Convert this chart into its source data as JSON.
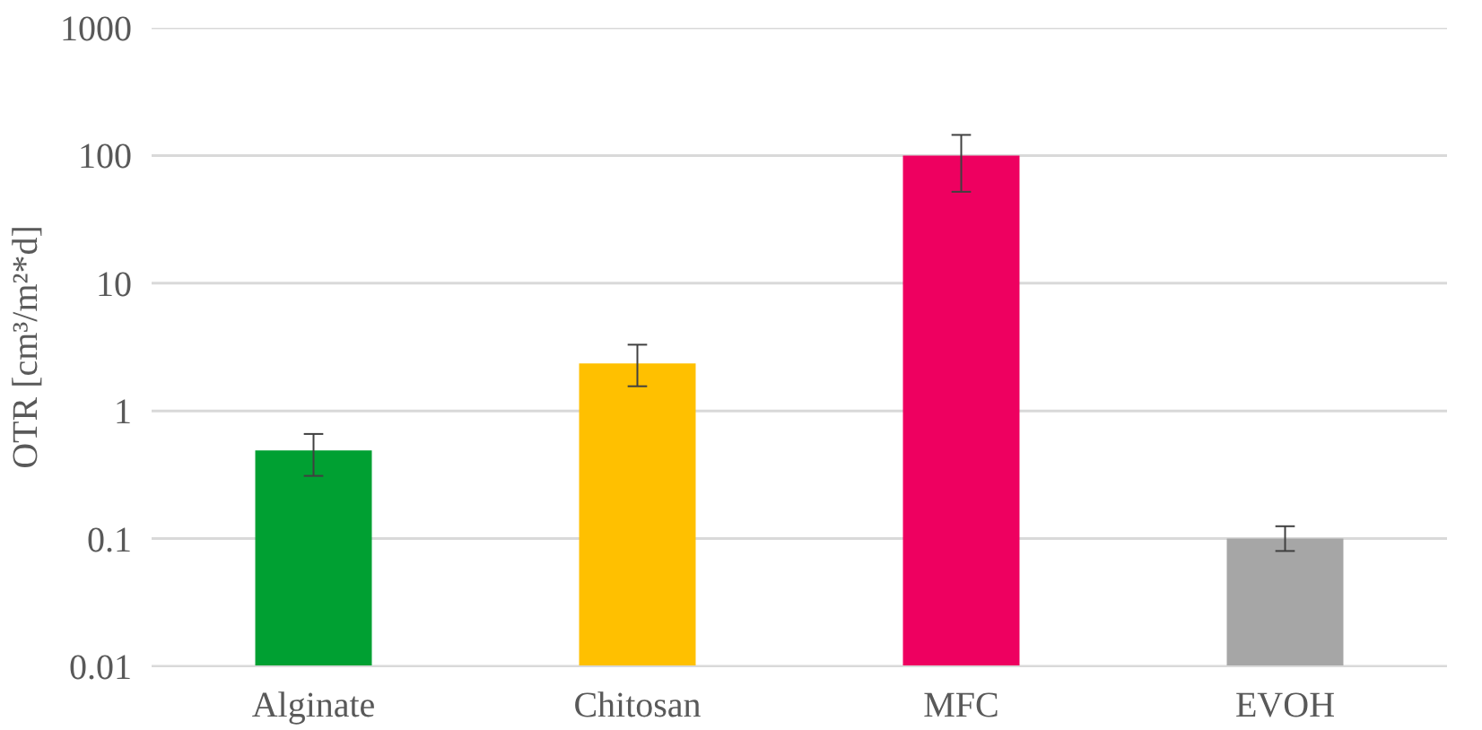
{
  "chart_data": {
    "type": "bar",
    "ylabel": "OTR [cm³/m²*d]",
    "categories": [
      "Alginate",
      "Chitosan",
      "MFC",
      "EVOH"
    ],
    "values": [
      0.49,
      2.35,
      100,
      0.1
    ],
    "colors": [
      "#00a032",
      "#ffc000",
      "#ee0060",
      "#a6a6a6"
    ],
    "errors": [
      [
        0.31,
        0.66
      ],
      [
        1.56,
        3.3
      ],
      [
        52,
        145
      ],
      [
        0.08,
        0.125
      ]
    ],
    "log": true,
    "ylim": [
      0.01,
      1000
    ],
    "yticks": [
      0.01,
      0.1,
      1,
      10,
      100,
      1000
    ],
    "grid": "y"
  }
}
